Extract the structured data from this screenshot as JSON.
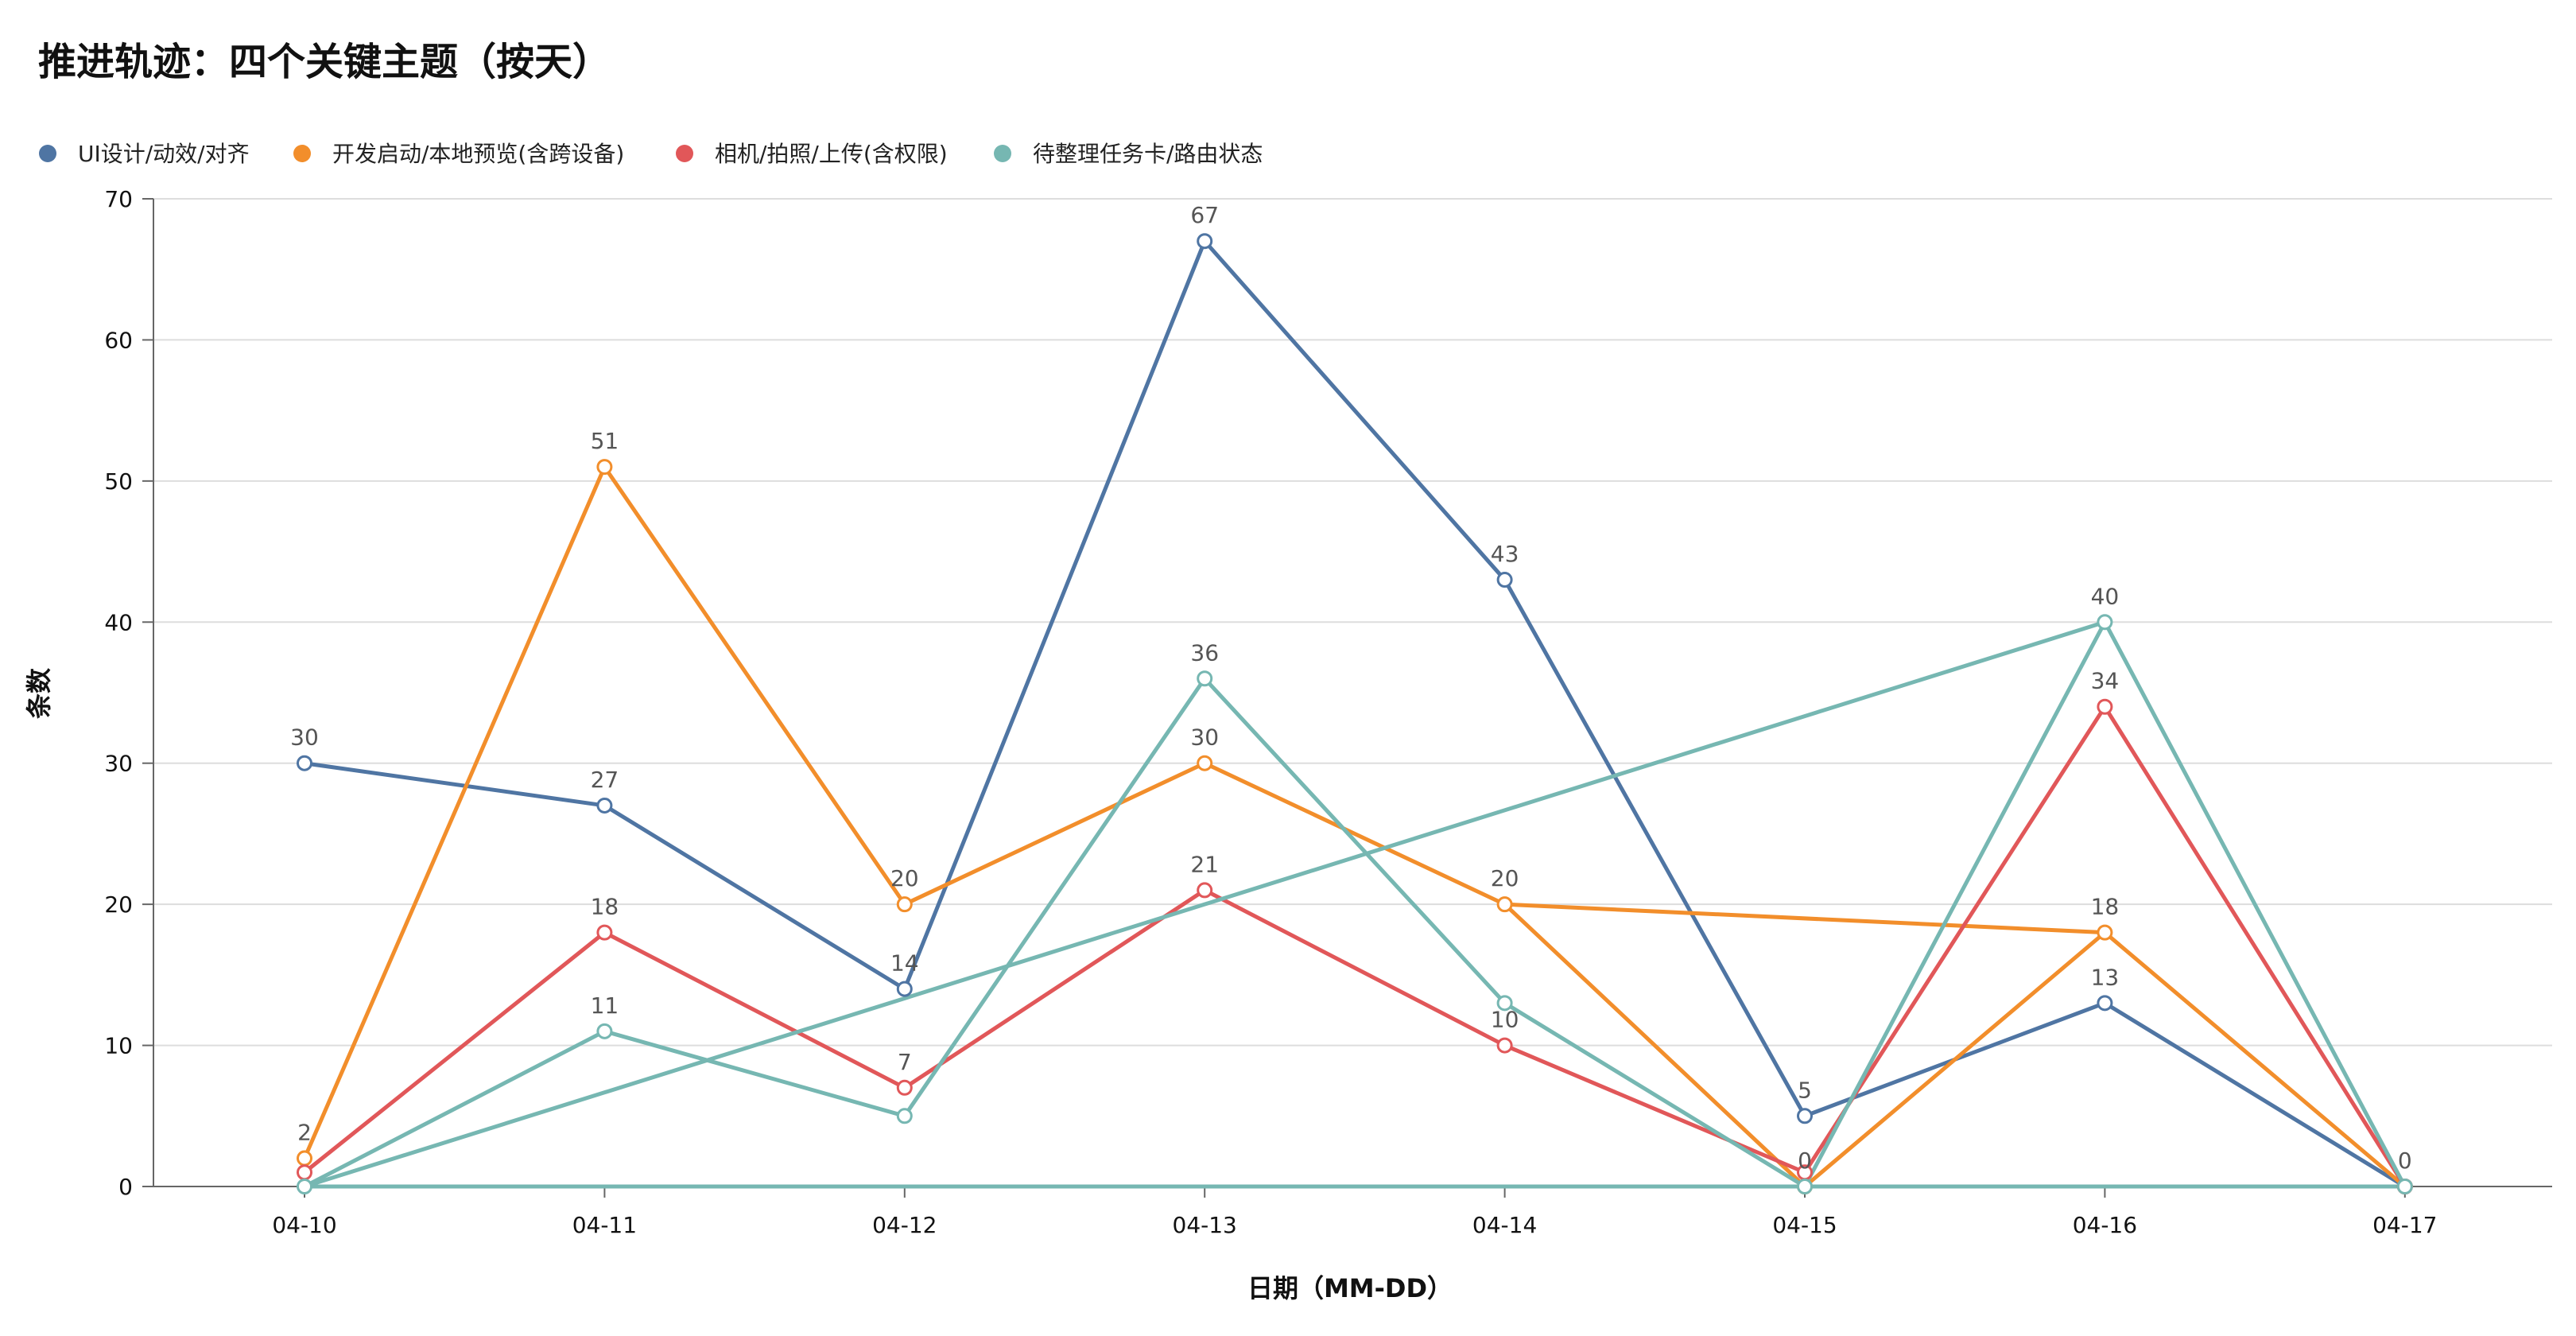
{
  "chart_data": {
    "type": "line",
    "title": "推进轨迹：四个关键主题（按天）",
    "xlabel": "日期（MM-DD）",
    "ylabel": "条数",
    "ylim": [
      0,
      70
    ],
    "yticks": [
      0,
      10,
      20,
      30,
      40,
      50,
      60,
      70
    ],
    "categories": [
      "04-10",
      "04-11",
      "04-12",
      "04-13",
      "04-14",
      "04-15",
      "04-16",
      "04-17"
    ],
    "legend_position": "top-left",
    "grid": true,
    "series": [
      {
        "name": "UI设计/动效/对齐",
        "color": "#4f75a3",
        "values": [
          30,
          27,
          14,
          67,
          43,
          5,
          13,
          0
        ],
        "labels": [
          "30",
          "27",
          "14",
          "67",
          "43",
          "5",
          "13",
          ""
        ]
      },
      {
        "name": "开发启动/本地预览(含跨设备)",
        "color": "#f28e2b",
        "values": [
          2,
          51,
          20,
          30,
          20,
          0,
          18,
          0
        ],
        "labels": [
          "2",
          "51",
          "20",
          "30",
          "20",
          "0",
          "18",
          "0"
        ],
        "extra_segments": [
          [
            [
              4,
              20
            ],
            [
              6,
              18
            ]
          ]
        ]
      },
      {
        "name": "相机/拍照/上传(含权限)",
        "color": "#e15759",
        "values": [
          1,
          18,
          7,
          21,
          10,
          1,
          34,
          0
        ],
        "labels": [
          "",
          "18",
          "7",
          "21",
          "10",
          "",
          "34",
          ""
        ]
      },
      {
        "name": "待整理任务卡/路由状态",
        "color": "#76b7b2",
        "values": [
          0,
          11,
          5,
          36,
          13,
          0,
          40,
          0
        ],
        "labels": [
          "",
          "11",
          "",
          "36",
          "",
          "",
          "40",
          ""
        ],
        "extra_segments": [
          [
            [
              0,
              0
            ],
            [
              3,
              20
            ],
            [
              6,
              40
            ]
          ],
          [
            [
              0,
              0
            ],
            [
              7,
              0
            ]
          ]
        ]
      }
    ]
  }
}
